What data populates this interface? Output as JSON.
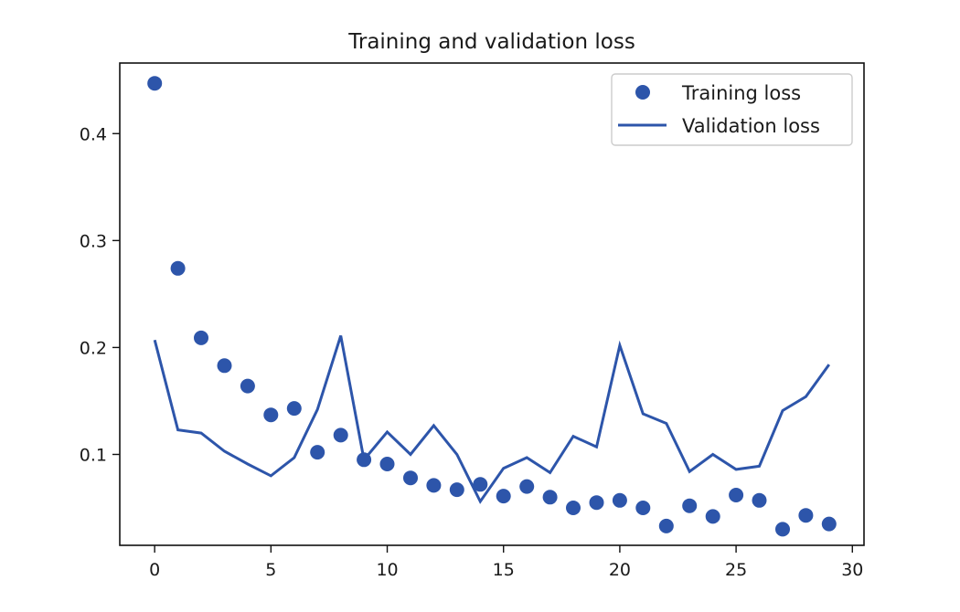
{
  "chart_data": {
    "type": "line",
    "title": "Training and validation loss",
    "xlabel": "",
    "ylabel": "",
    "xlim": [
      -1.5,
      30.5
    ],
    "ylim": [
      0.015,
      0.466
    ],
    "xticks": [
      0,
      5,
      10,
      15,
      20,
      25,
      30
    ],
    "xtick_labels": [
      "0",
      "5",
      "10",
      "15",
      "20",
      "25",
      "30"
    ],
    "yticks": [
      0.1,
      0.2,
      0.3,
      0.4
    ],
    "ytick_labels": [
      "0.1",
      "0.2",
      "0.3",
      "0.4"
    ],
    "grid": false,
    "legend_position": "top-right",
    "color": "#2d55aa",
    "x": [
      0,
      1,
      2,
      3,
      4,
      5,
      6,
      7,
      8,
      9,
      10,
      11,
      12,
      13,
      14,
      15,
      16,
      17,
      18,
      19,
      20,
      21,
      22,
      23,
      24,
      25,
      26,
      27,
      28,
      29
    ],
    "series": [
      {
        "name": "Training loss",
        "style": "dots",
        "values": [
          0.447,
          0.274,
          0.209,
          0.183,
          0.164,
          0.137,
          0.143,
          0.102,
          0.118,
          0.095,
          0.091,
          0.078,
          0.071,
          0.067,
          0.072,
          0.061,
          0.07,
          0.06,
          0.05,
          0.055,
          0.057,
          0.05,
          0.033,
          0.052,
          0.042,
          0.062,
          0.057,
          0.03,
          0.043,
          0.035
        ]
      },
      {
        "name": "Validation loss",
        "style": "line",
        "values": [
          0.207,
          0.123,
          0.12,
          0.103,
          0.091,
          0.08,
          0.097,
          0.142,
          0.211,
          0.095,
          0.121,
          0.1,
          0.127,
          0.1,
          0.056,
          0.087,
          0.097,
          0.083,
          0.117,
          0.107,
          0.202,
          0.138,
          0.129,
          0.084,
          0.1,
          0.086,
          0.089,
          0.141,
          0.154,
          0.184
        ]
      }
    ]
  }
}
